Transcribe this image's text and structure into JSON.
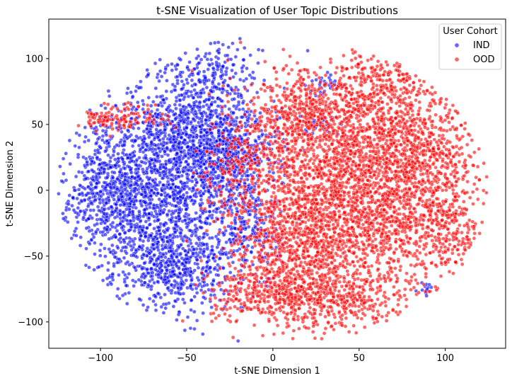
{
  "chart_data": {
    "type": "scatter",
    "title": "t-SNE Visualization of User Topic Distributions",
    "xlabel": "t-SNE Dimension 1",
    "ylabel": "t-SNE Dimension 2",
    "xlim": [
      -130,
      135
    ],
    "ylim": [
      -120,
      130
    ],
    "xticks": [
      -100,
      -50,
      0,
      50,
      100
    ],
    "yticks": [
      -100,
      -50,
      0,
      50,
      100
    ],
    "xtick_labels": [
      "−100",
      "−50",
      "0",
      "50",
      "100"
    ],
    "ytick_labels": [
      "−100",
      "−50",
      "0",
      "50",
      "100"
    ],
    "grid": false,
    "legend": {
      "title": "User Cohort",
      "placement": "top-right"
    },
    "series": [
      {
        "name": "IND",
        "color": "#0000ff",
        "clusters": [
          {
            "cx": -70,
            "cy": -5,
            "sx": 24,
            "sy": 38,
            "n": 1700
          },
          {
            "cx": -45,
            "cy": 45,
            "sx": 18,
            "sy": 28,
            "n": 750
          },
          {
            "cx": -25,
            "cy": 28,
            "sx": 14,
            "sy": 14,
            "n": 450
          },
          {
            "cx": -95,
            "cy": 5,
            "sx": 10,
            "sy": 20,
            "n": 250
          },
          {
            "cx": -55,
            "cy": -60,
            "sx": 14,
            "sy": 14,
            "n": 350
          },
          {
            "cx": -15,
            "cy": -30,
            "sx": 10,
            "sy": 22,
            "n": 250
          },
          {
            "cx": -30,
            "cy": 90,
            "sx": 12,
            "sy": 12,
            "n": 120
          },
          {
            "cx": 30,
            "cy": 80,
            "sx": 5,
            "sy": 4,
            "n": 30
          },
          {
            "cx": 90,
            "cy": -75,
            "sx": 3,
            "sy": 3,
            "n": 15
          },
          {
            "cx": 25,
            "cy": 48,
            "sx": 5,
            "sy": 4,
            "n": 30
          }
        ]
      },
      {
        "name": "OOD",
        "color": "#ff0000",
        "clusters": [
          {
            "cx": 50,
            "cy": 0,
            "sx": 30,
            "sy": 42,
            "n": 2400
          },
          {
            "cx": 15,
            "cy": -40,
            "sx": 20,
            "sy": 28,
            "n": 850
          },
          {
            "cx": 85,
            "cy": 30,
            "sx": 18,
            "sy": 30,
            "n": 650
          },
          {
            "cx": 20,
            "cy": 55,
            "sx": 18,
            "sy": 18,
            "n": 550
          },
          {
            "cx": 0,
            "cy": -80,
            "sx": 18,
            "sy": 10,
            "n": 300
          },
          {
            "cx": 60,
            "cy": 85,
            "sx": 10,
            "sy": 12,
            "n": 180
          },
          {
            "cx": -90,
            "cy": 55,
            "sx": 15,
            "sy": 5,
            "n": 140
          },
          {
            "cx": -20,
            "cy": 20,
            "sx": 10,
            "sy": 16,
            "n": 160
          },
          {
            "cx": 105,
            "cy": -30,
            "sx": 10,
            "sy": 20,
            "n": 200
          },
          {
            "cx": 40,
            "cy": -85,
            "sx": 20,
            "sy": 10,
            "n": 260
          }
        ]
      }
    ]
  }
}
